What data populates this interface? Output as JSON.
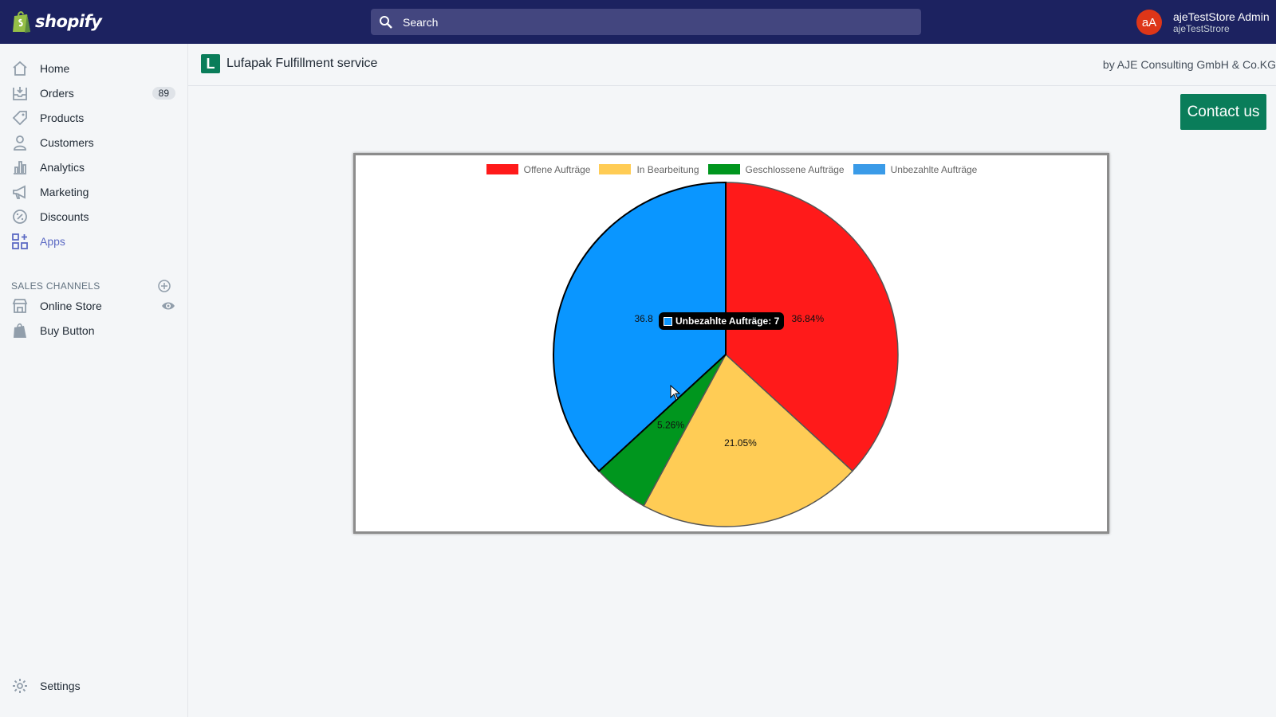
{
  "topbar": {
    "brand": "shopify",
    "search_placeholder": "Search",
    "user_initials": "aA",
    "user_name": "ajeTestStore Admin",
    "user_store": "ajeTestStrore"
  },
  "sidebar": {
    "items": [
      {
        "label": "Home",
        "icon": "home-icon"
      },
      {
        "label": "Orders",
        "icon": "orders-icon",
        "badge": "89"
      },
      {
        "label": "Products",
        "icon": "tag-icon"
      },
      {
        "label": "Customers",
        "icon": "person-icon"
      },
      {
        "label": "Analytics",
        "icon": "bar-chart-icon"
      },
      {
        "label": "Marketing",
        "icon": "megaphone-icon"
      },
      {
        "label": "Discounts",
        "icon": "discount-icon"
      },
      {
        "label": "Apps",
        "icon": "apps-icon",
        "active": true
      }
    ],
    "sales_channels_title": "SALES CHANNELS",
    "channels": [
      {
        "label": "Online Store",
        "icon": "store-icon"
      },
      {
        "label": "Buy Button",
        "icon": "shopify-bag-icon"
      }
    ],
    "settings_label": "Settings"
  },
  "app": {
    "logo_letter": "L",
    "title": "Lufapak Fulfillment service",
    "by": "by AJE Consulting GmbH & Co.KG",
    "contact_label": "Contact us"
  },
  "chart_data": {
    "type": "pie",
    "categories": [
      "Offene Aufträge",
      "In Bearbeitung",
      "Geschlossene Aufträge",
      "Unbezahlte Aufträge"
    ],
    "values": [
      7,
      4,
      1,
      7
    ],
    "percent_labels": [
      "36.84%",
      "21.05%",
      "5.26%",
      "36.8"
    ],
    "colors": [
      "#ff1a1a",
      "#ffcc55",
      "#00961e",
      "#0a96ff"
    ],
    "legend_placement": "top",
    "tooltip": "Unbezahlte Aufträge: 7"
  }
}
